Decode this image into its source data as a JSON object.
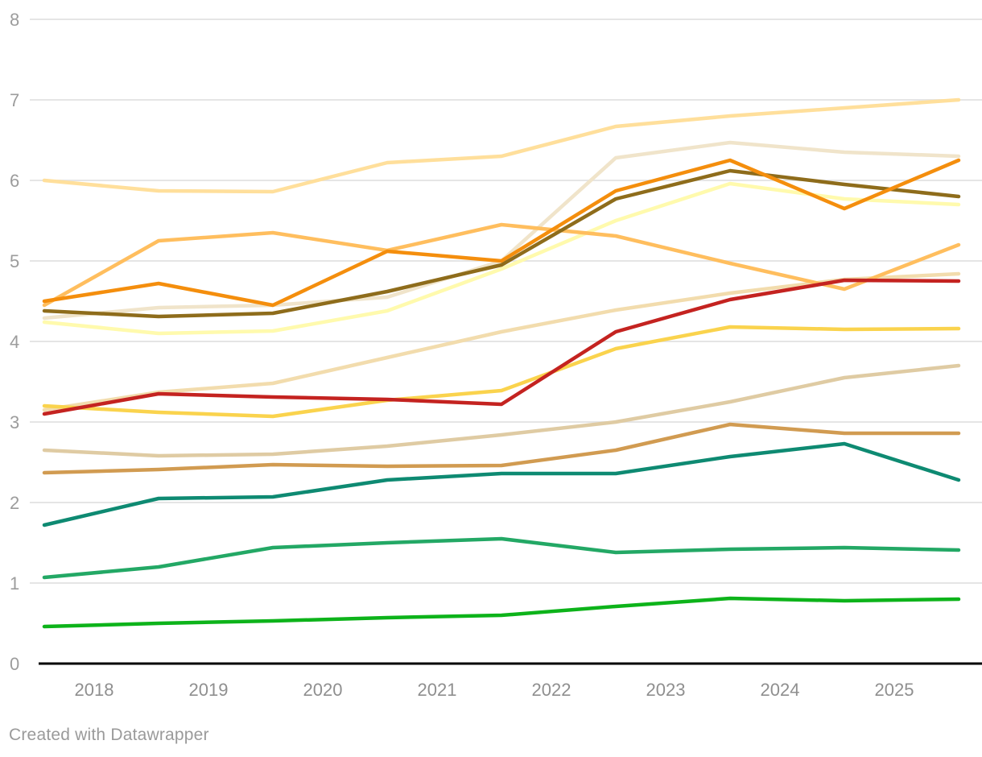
{
  "footer": {
    "credit": "Created with Datawrapper"
  },
  "chart_data": {
    "type": "line",
    "title": "",
    "xlabel": "",
    "ylabel": "",
    "ylim": [
      0,
      8
    ],
    "y_ticks": [
      "0",
      "1",
      "2",
      "3",
      "4",
      "5",
      "6",
      "7",
      "8"
    ],
    "x_labels": [
      "2018",
      "2019",
      "2020",
      "2021",
      "2022",
      "2023",
      "2024",
      "2025"
    ],
    "x_layout_note": "9 yearly points per series; year labels are centered between consecutive points",
    "grid": true,
    "legend": "none",
    "series": [
      {
        "name": "pale-beige",
        "color": "#F0E4CA",
        "values": [
          4.29,
          4.42,
          4.45,
          4.55,
          5.0,
          6.28,
          6.47,
          6.35,
          6.3
        ]
      },
      {
        "name": "sand",
        "color": "#F2DCAD",
        "values": [
          3.15,
          3.37,
          3.48,
          3.8,
          4.12,
          4.39,
          4.6,
          4.77,
          4.84
        ]
      },
      {
        "name": "light-tan",
        "color": "#DFCBA3",
        "values": [
          2.65,
          2.58,
          2.6,
          2.7,
          2.84,
          3.0,
          3.25,
          3.55,
          3.7
        ]
      },
      {
        "name": "pale-yellow",
        "color": "#FFFAAD",
        "values": [
          4.24,
          4.1,
          4.13,
          4.38,
          4.9,
          5.5,
          5.96,
          5.77,
          5.7
        ]
      },
      {
        "name": "cream",
        "color": "#FFDF9B",
        "values": [
          6.0,
          5.87,
          5.86,
          6.22,
          6.3,
          6.67,
          6.8,
          6.9,
          7.0
        ]
      },
      {
        "name": "light-orange",
        "color": "#FFBE5E",
        "values": [
          4.45,
          5.25,
          5.35,
          5.13,
          5.45,
          5.31,
          4.97,
          4.65,
          5.2
        ]
      },
      {
        "name": "gold",
        "color": "#FAD34D",
        "values": [
          3.2,
          3.12,
          3.07,
          3.27,
          3.39,
          3.91,
          4.18,
          4.15,
          4.16
        ]
      },
      {
        "name": "camel",
        "color": "#D19B51",
        "values": [
          2.37,
          2.41,
          2.47,
          2.45,
          2.46,
          2.65,
          2.97,
          2.86,
          2.86
        ]
      },
      {
        "name": "olive",
        "color": "#8E6C1B",
        "values": [
          4.38,
          4.31,
          4.35,
          4.62,
          4.95,
          5.77,
          6.12,
          5.95,
          5.8
        ]
      },
      {
        "name": "orange",
        "color": "#F48E0D",
        "values": [
          4.5,
          4.72,
          4.45,
          5.12,
          5.0,
          5.87,
          6.25,
          5.65,
          6.25
        ]
      },
      {
        "name": "red",
        "color": "#C42320",
        "values": [
          3.1,
          3.35,
          3.31,
          3.28,
          3.22,
          4.12,
          4.52,
          4.76,
          4.75
        ]
      },
      {
        "name": "teal",
        "color": "#0E8A72",
        "values": [
          1.72,
          2.05,
          2.07,
          2.28,
          2.36,
          2.36,
          2.57,
          2.73,
          2.28
        ]
      },
      {
        "name": "sea-green",
        "color": "#23A865",
        "values": [
          1.07,
          1.2,
          1.44,
          1.5,
          1.55,
          1.38,
          1.42,
          1.44,
          1.41
        ]
      },
      {
        "name": "bright-green",
        "color": "#0DB31A",
        "values": [
          0.46,
          0.5,
          0.53,
          0.57,
          0.6,
          0.71,
          0.81,
          0.78,
          0.8
        ]
      }
    ],
    "style": {
      "grid_color": "#e5e5e5",
      "axis_color": "#000000",
      "label_color": "#9c9c9c"
    }
  }
}
